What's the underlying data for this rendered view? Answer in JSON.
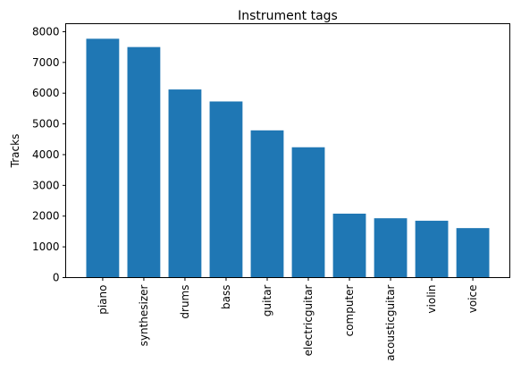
{
  "chart_data": {
    "type": "bar",
    "title": "Instrument tags",
    "xlabel": "",
    "ylabel": "Tracks",
    "categories": [
      "piano",
      "synthesizer",
      "drums",
      "bass",
      "guitar",
      "electricguitar",
      "computer",
      "acousticguitar",
      "violin",
      "voice"
    ],
    "values": [
      7770,
      7500,
      6120,
      5730,
      4790,
      4240,
      2080,
      1930,
      1850,
      1610
    ],
    "ylim": [
      0,
      8000
    ],
    "yticks": [
      0,
      1000,
      2000,
      3000,
      4000,
      5000,
      6000,
      7000,
      8000
    ],
    "bar_color": "#1f77b4",
    "grid": false,
    "legend": "none"
  }
}
